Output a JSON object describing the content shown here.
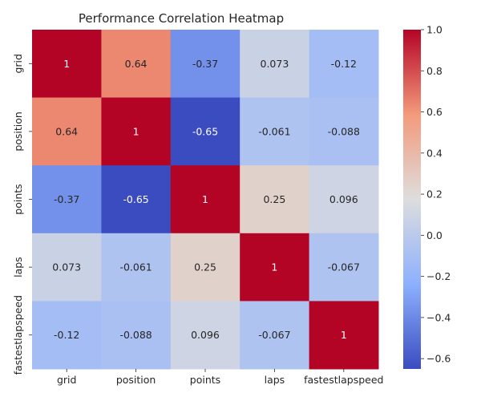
{
  "chart_data": {
    "type": "heatmap",
    "title": "Performance Correlation Heatmap",
    "xlabel": "",
    "ylabel": "",
    "x_categories": [
      "grid",
      "position",
      "points",
      "laps",
      "fastestlapspeed"
    ],
    "y_categories": [
      "grid",
      "position",
      "points",
      "laps",
      "fastestlapspeed"
    ],
    "values": [
      [
        1,
        0.64,
        -0.37,
        0.073,
        -0.12
      ],
      [
        0.64,
        1,
        -0.65,
        -0.061,
        -0.088
      ],
      [
        -0.37,
        -0.65,
        1,
        0.25,
        0.096
      ],
      [
        0.073,
        -0.061,
        0.25,
        1,
        -0.067
      ],
      [
        -0.12,
        -0.088,
        0.096,
        -0.067,
        1
      ]
    ],
    "cell_labels": [
      [
        "1",
        "0.64",
        "-0.37",
        "0.073",
        "-0.12"
      ],
      [
        "0.64",
        "1",
        "-0.65",
        "-0.061",
        "-0.088"
      ],
      [
        "-0.37",
        "-0.65",
        "1",
        "0.25",
        "0.096"
      ],
      [
        "0.073",
        "-0.061",
        "0.25",
        "1",
        "-0.067"
      ],
      [
        "-0.12",
        "-0.088",
        "0.096",
        "-0.067",
        "1"
      ]
    ],
    "colormap": "coolwarm",
    "colorbar": {
      "vmin": -0.65,
      "vmax": 1.0,
      "ticks": [
        1.0,
        0.8,
        0.6,
        0.4,
        0.2,
        0.0,
        -0.2,
        -0.4,
        -0.6
      ],
      "tick_labels": [
        "1.0",
        "0.8",
        "0.6",
        "0.4",
        "0.2",
        "0.0",
        "−0.2",
        "−0.4",
        "−0.6"
      ]
    },
    "grid": false,
    "legend": "colorbar-right"
  }
}
